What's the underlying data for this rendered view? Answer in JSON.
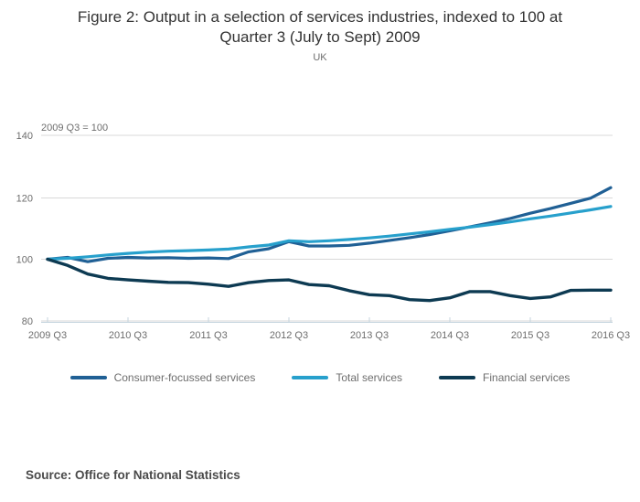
{
  "header": {
    "title_lines": [
      "Figure 2: Output in a selection of services industries, indexed to 100 at",
      "Quarter 3 (July to Sept) 2009"
    ],
    "subtitle": "UK"
  },
  "chart_data": {
    "type": "line",
    "title": "Figure 2: Output in a selection of services industries, indexed to 100 at Quarter 3 (July to Sept) 2009",
    "subtitle": "UK",
    "axis_note": "2009 Q3 = 100",
    "grid": "horizontal",
    "legend_position": "bottom",
    "ylim": [
      80,
      143
    ],
    "y_ticks": [
      140,
      120,
      100,
      80
    ],
    "x_tick_labels": [
      "2009 Q3",
      "2010 Q3",
      "2011 Q3",
      "2012 Q3",
      "2013 Q3",
      "2014 Q3",
      "2015 Q3",
      "2016 Q3"
    ],
    "x": [
      "2009 Q3",
      "2009 Q4",
      "2010 Q1",
      "2010 Q2",
      "2010 Q3",
      "2010 Q4",
      "2011 Q1",
      "2011 Q2",
      "2011 Q3",
      "2011 Q4",
      "2012 Q1",
      "2012 Q2",
      "2012 Q3",
      "2012 Q4",
      "2013 Q1",
      "2013 Q2",
      "2013 Q3",
      "2013 Q4",
      "2014 Q1",
      "2014 Q2",
      "2014 Q3",
      "2014 Q4",
      "2015 Q1",
      "2015 Q2",
      "2015 Q3",
      "2015 Q4",
      "2016 Q1",
      "2016 Q2",
      "2016 Q3"
    ],
    "series": [
      {
        "name": "Consumer-focussed services",
        "color": "#206095",
        "values": [
          100,
          100.6,
          99.2,
          100.3,
          100.6,
          100.4,
          100.5,
          100.3,
          100.4,
          100.2,
          102.4,
          103.4,
          105.7,
          104.3,
          104.3,
          104.5,
          105.2,
          106.1,
          107.0,
          108.0,
          109.2,
          110.5,
          111.8,
          113.2,
          114.9,
          116.4,
          118.1,
          119.8,
          123.2
        ]
      },
      {
        "name": "Total services",
        "color": "#27a0cc",
        "values": [
          100,
          100.3,
          100.8,
          101.4,
          101.9,
          102.3,
          102.6,
          102.8,
          103.0,
          103.3,
          104.0,
          104.6,
          106.0,
          105.7,
          106.0,
          106.4,
          106.9,
          107.5,
          108.2,
          108.9,
          109.7,
          110.4,
          111.2,
          112.1,
          113.1,
          114.0,
          115.0,
          116.0,
          117.1
        ]
      },
      {
        "name": "Financial services",
        "color": "#0d3a52",
        "values": [
          100,
          98.0,
          95.2,
          93.8,
          93.3,
          92.9,
          92.5,
          92.4,
          91.9,
          91.2,
          92.4,
          93.1,
          93.3,
          91.8,
          91.4,
          89.8,
          88.5,
          88.2,
          86.9,
          86.6,
          87.5,
          89.5,
          89.5,
          88.2,
          87.3,
          87.8,
          89.9,
          90.0,
          90.0
        ]
      }
    ]
  },
  "source": {
    "label": "Source: Office for National Statistics"
  }
}
